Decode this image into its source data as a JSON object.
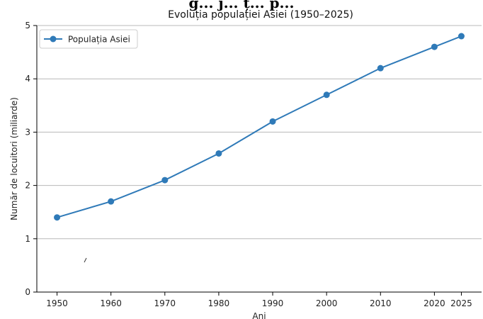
{
  "chart_data": {
    "type": "line",
    "header_text": "g... j... ț... p...",
    "title": "Evoluția populației Asiei (1950–2025)",
    "xlabel": "Ani",
    "ylabel": "Număr de locuitori (miliarde)",
    "x": [
      1950,
      1960,
      1970,
      1980,
      1990,
      2000,
      2010,
      2020,
      2025
    ],
    "xtick_labels": [
      "1950",
      "1960",
      "1970",
      "1980",
      "1990",
      "2000",
      "2010",
      "2020",
      "2025"
    ],
    "series": [
      {
        "name": "Populația Asiei",
        "values": [
          1.4,
          1.7,
          2.1,
          2.6,
          3.2,
          3.7,
          4.2,
          4.6,
          4.8
        ]
      }
    ],
    "ylim": [
      0,
      5
    ],
    "yticks": [
      0,
      1,
      2,
      3,
      4,
      5
    ],
    "ytick_labels": [
      "0",
      "1",
      "2",
      "3",
      "4",
      "5"
    ],
    "grid": "horizontal",
    "legend_position": "top-left",
    "colors": {
      "line": "#2f7ab8",
      "grid": "#b8b8b8",
      "axis": "#000000"
    }
  }
}
